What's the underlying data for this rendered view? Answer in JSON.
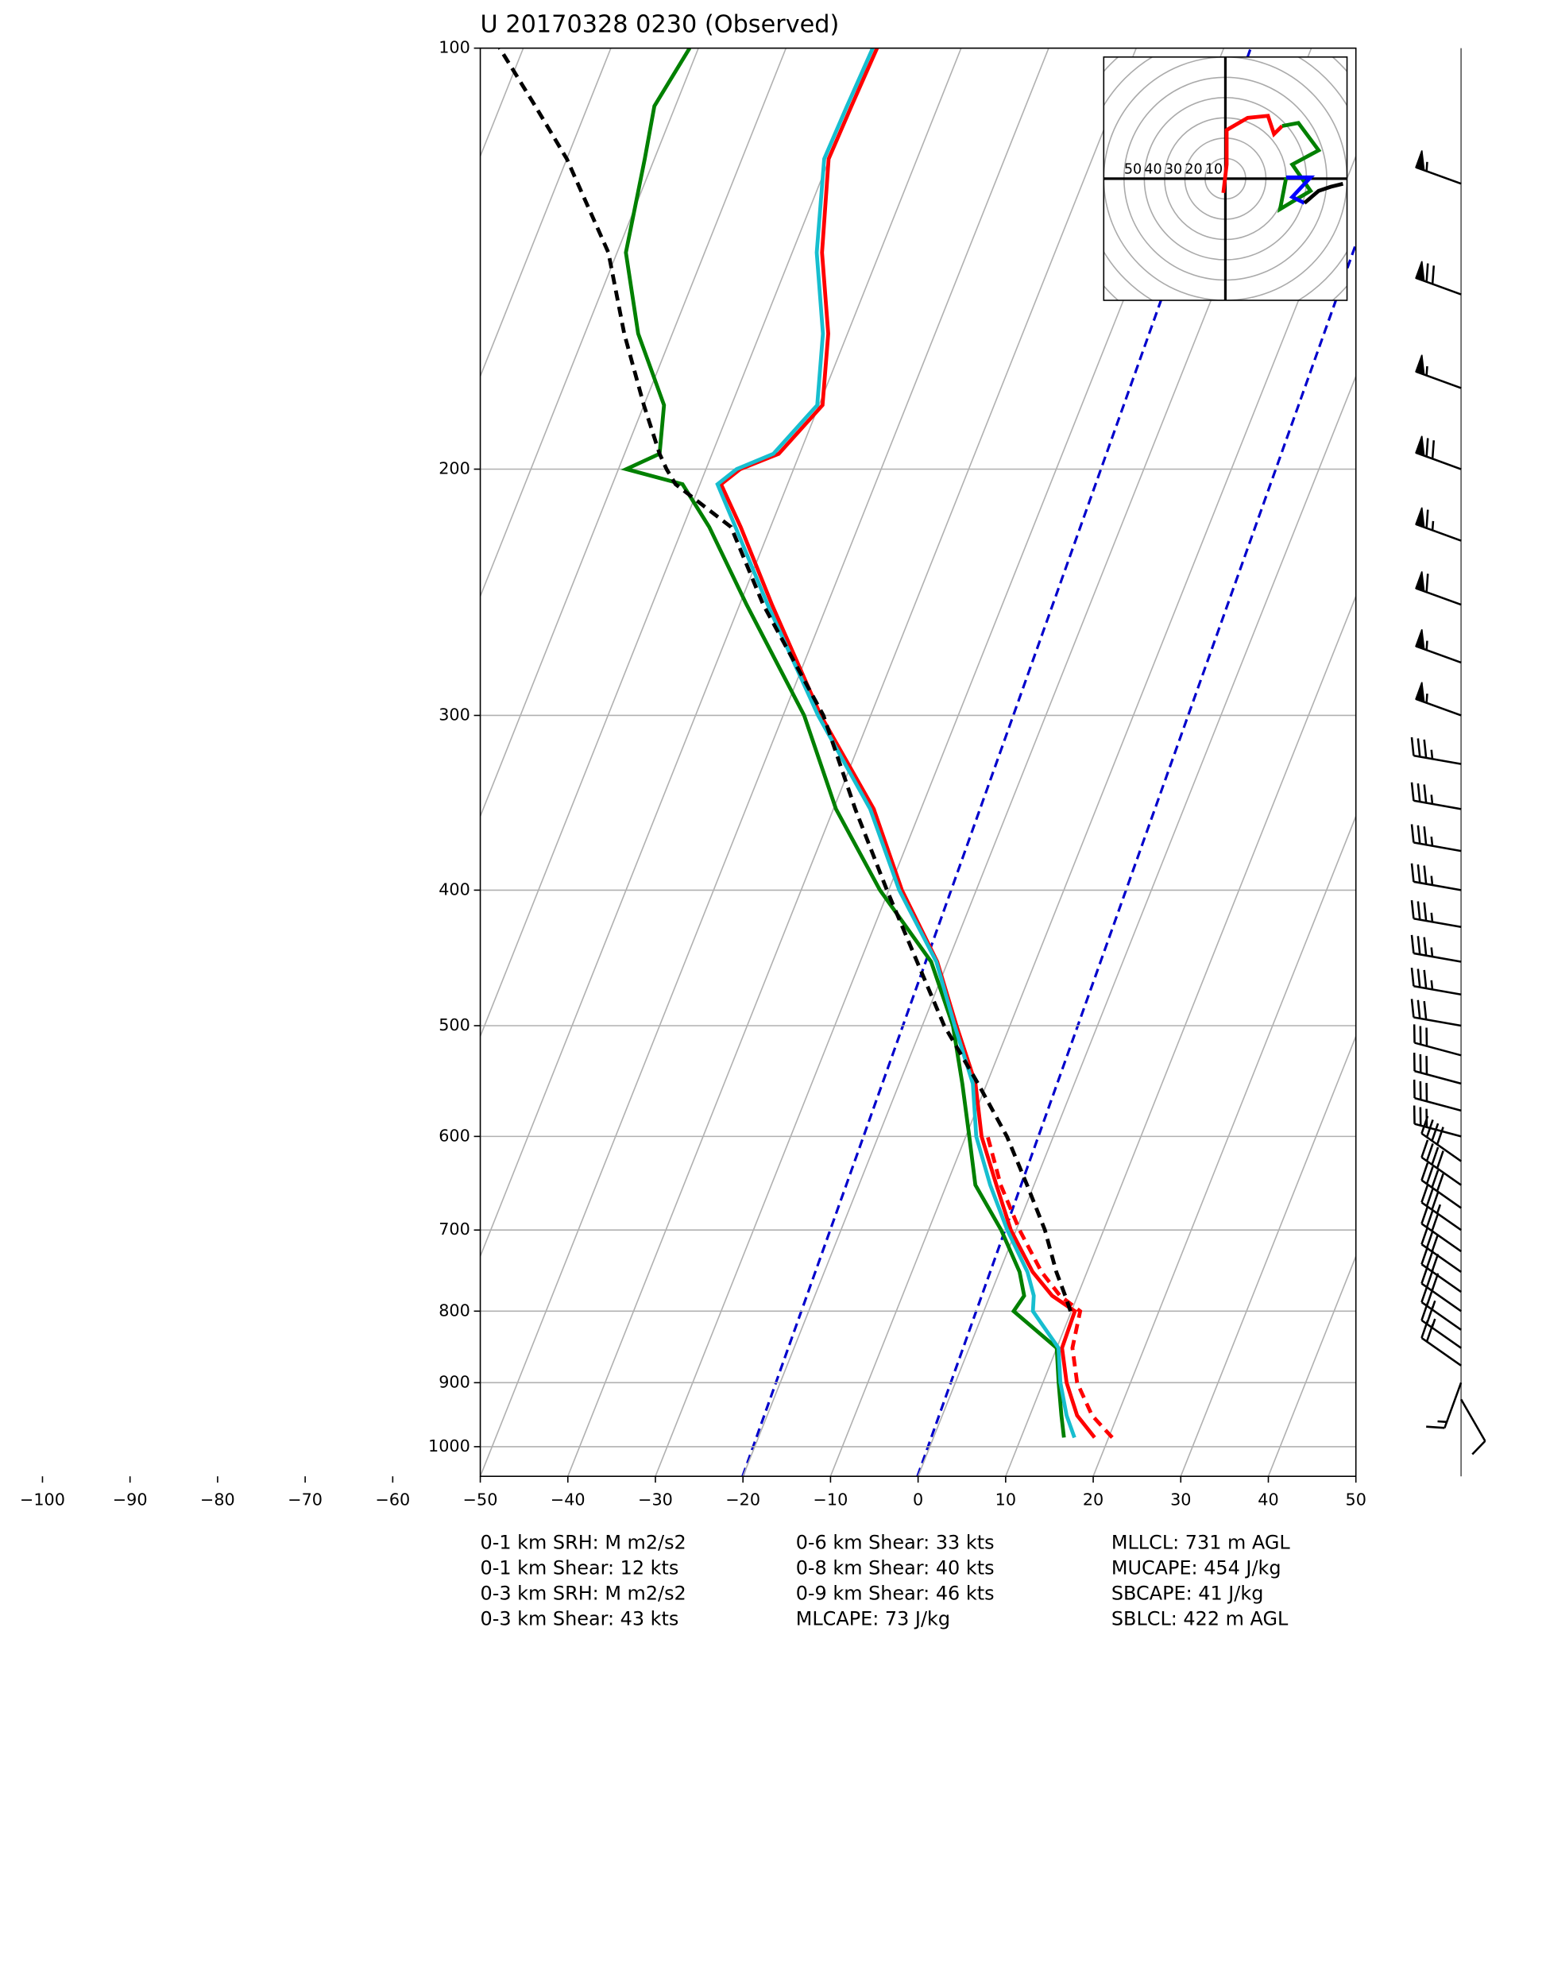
{
  "chart_data": {
    "type": "skewt",
    "title": "U 20170328 0230   (Observed)",
    "pressure": [
      985,
      950,
      900,
      850,
      800,
      780,
      750,
      700,
      650,
      600,
      550,
      500,
      450,
      400,
      350,
      300,
      250,
      220,
      205,
      200,
      195,
      180,
      160,
      140,
      120,
      110,
      100
    ],
    "series": [
      {
        "color": "#ff0000",
        "style": "dashed",
        "values": [
          20.4,
          17.1,
          13.9,
          11.8,
          11.0,
          8.0,
          4.8,
          0.4,
          -3.8,
          -7.5,
          null,
          null,
          null,
          null,
          null,
          null,
          null,
          null,
          null,
          null,
          null,
          null,
          null,
          null,
          null,
          null,
          null
        ]
      },
      {
        "color": "#ff0000",
        "style": "solid",
        "values": [
          18.4,
          15.4,
          12.7,
          10.6,
          10.4,
          7.1,
          3.8,
          -0.6,
          -4.3,
          -8.2,
          -11.3,
          -16.1,
          -21.2,
          -28.5,
          -35.4,
          -45.7,
          -56.3,
          -63.4,
          -67.6,
          -66.1,
          -62.4,
          -59.6,
          -62.2,
          -66.6,
          -70.1,
          -69.9,
          -69.6
        ]
      },
      {
        "color": "#008000",
        "style": "solid",
        "values": [
          14.9,
          13.6,
          11.8,
          10.0,
          3.4,
          3.9,
          2.3,
          -1.7,
          -6.7,
          -9.6,
          -12.8,
          -16.5,
          -21.9,
          -31.0,
          -39.7,
          -47.6,
          -59.2,
          -67.0,
          -72.0,
          -79.1,
          -76.0,
          -77.7,
          -83.9,
          -89.0,
          -91.1,
          -92.4,
          -91.0
        ]
      },
      {
        "color": "#17becf",
        "style": "solid",
        "values": [
          16.1,
          14.2,
          12.0,
          10.2,
          5.6,
          5.0,
          3.2,
          -1.0,
          -5.0,
          -8.8,
          -11.6,
          -16.3,
          -21.3,
          -28.8,
          -35.8,
          -46.0,
          -56.8,
          -64.0,
          -68.0,
          -66.5,
          -63.0,
          -60.2,
          -62.8,
          -67.2,
          -70.6,
          -70.4,
          -70.1
        ]
      },
      {
        "color": "#000000",
        "style": "dashed",
        "values": [
          null,
          null,
          null,
          null,
          9.9,
          8.6,
          6.5,
          3.3,
          -0.8,
          -5.3,
          -11.0,
          -17.5,
          -23.5,
          -30.2,
          -37.5,
          -45.4,
          -57.3,
          -64.5,
          -72.8,
          -74.5,
          -76.0,
          -80.0,
          -85.5,
          -91.0,
          -100.0,
          -106.0,
          -112.7
        ]
      }
    ],
    "ylim": [
      1050,
      100
    ],
    "log_y": true,
    "yticks": [
      100,
      200,
      300,
      400,
      500,
      600,
      700,
      800,
      900,
      1000
    ],
    "xlim": [
      -50,
      50
    ],
    "xticks": [
      {
        "value": -100,
        "label": "−100"
      },
      {
        "value": -90,
        "label": "−90"
      },
      {
        "value": -80,
        "label": "−80"
      },
      {
        "value": -70,
        "label": "−70"
      },
      {
        "value": -60,
        "label": "−60"
      },
      {
        "value": -50,
        "label": "−50"
      },
      {
        "value": -40,
        "label": "−40"
      },
      {
        "value": -30,
        "label": "−30"
      },
      {
        "value": -20,
        "label": "−20"
      },
      {
        "value": -10,
        "label": "−10"
      },
      0,
      10,
      20,
      30,
      40,
      50
    ],
    "grid": true,
    "hodograph": {
      "rings": [
        50,
        40,
        30,
        20,
        10
      ],
      "lines": [
        {
          "color": "#ff0000",
          "u": [
            -1,
            0.6,
            0.6,
            11,
            21,
            24,
            28
          ],
          "v": [
            -7,
            7,
            24,
            30,
            31,
            22,
            26
          ]
        },
        {
          "color": "#008000",
          "u": [
            28,
            36,
            46,
            33,
            42,
            27,
            30
          ],
          "v": [
            26,
            27.5,
            14,
            7,
            -6,
            -15,
            0.6
          ]
        },
        {
          "color": "#0000ff",
          "u": [
            30,
            42,
            33,
            39
          ],
          "v": [
            0.6,
            0.6,
            -9,
            -12
          ]
        },
        {
          "color": "#000000",
          "u": [
            39,
            46,
            52,
            58
          ],
          "v": [
            -12,
            -6,
            -4,
            -2.5
          ]
        }
      ]
    },
    "wind_barbs": {
      "pressure": [
        125,
        150,
        175,
        200,
        225,
        250,
        275,
        300,
        325,
        350,
        375,
        400,
        425,
        450,
        475,
        500,
        525,
        550,
        575,
        600,
        625,
        650,
        675,
        700,
        725,
        750,
        775,
        800,
        825,
        850,
        875,
        900,
        925
      ],
      "speed": [
        55,
        70,
        55,
        70,
        65,
        60,
        55,
        55,
        35,
        35,
        35,
        35,
        35,
        35,
        35,
        30,
        30,
        30,
        30,
        30,
        40,
        40,
        40,
        35,
        30,
        30,
        30,
        30,
        25,
        25,
        20,
        15,
        10
      ],
      "direction": [
        290,
        290,
        290,
        290,
        290,
        290,
        290,
        290,
        280,
        280,
        280,
        280,
        280,
        280,
        280,
        280,
        285,
        285,
        285,
        285,
        305,
        305,
        305,
        305,
        305,
        305,
        305,
        305,
        305,
        305,
        305,
        200,
        150
      ]
    },
    "indices": [
      [
        "0-1 km SRH: M m2/s2",
        "0-1 km Shear: 12 kts",
        "0-3 km SRH: M m2/s2",
        "0-3 km Shear: 43 kts"
      ],
      [
        "0-6 km Shear: 33 kts",
        "0-8 km Shear: 40 kts",
        "0-9 km Shear: 46 kts",
        "MLCAPE: 73 J/kg"
      ],
      [
        "MLLCL: 731 m AGL",
        "MUCAPE: 454 J/kg",
        "SBCAPE: 41 J/kg",
        "SBLCL: 422 m AGL"
      ]
    ]
  }
}
